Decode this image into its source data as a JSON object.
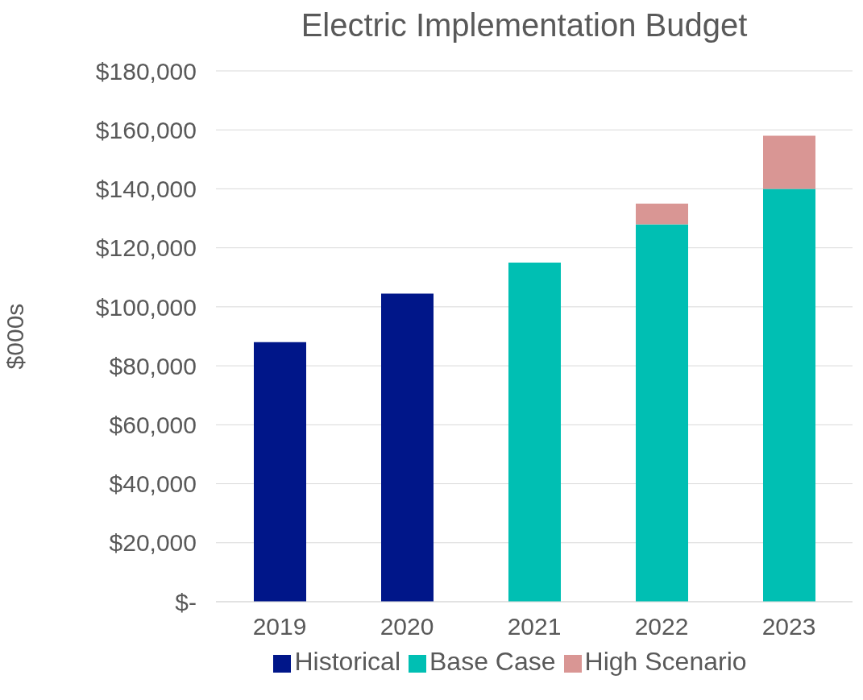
{
  "chart_data": {
    "type": "bar",
    "title": "Electric Implementation Budget",
    "ylabel": "$000s",
    "categories": [
      "2019",
      "2020",
      "2021",
      "2022",
      "2023"
    ],
    "stacked": true,
    "series": [
      {
        "name": "Historical",
        "color": "#001689",
        "values": [
          88000,
          104500,
          null,
          null,
          null
        ]
      },
      {
        "name": "Base Case",
        "color": "#00bfb3",
        "values": [
          null,
          null,
          115000,
          128000,
          140000
        ]
      },
      {
        "name": "High Scenario",
        "color": "#d99694",
        "values": [
          null,
          null,
          null,
          7000,
          18000
        ]
      }
    ],
    "ylim": [
      0,
      180000
    ],
    "yticks": [
      {
        "value": 0,
        "label": "$-"
      },
      {
        "value": 20000,
        "label": "$20,000"
      },
      {
        "value": 40000,
        "label": "$40,000"
      },
      {
        "value": 60000,
        "label": "$60,000"
      },
      {
        "value": 80000,
        "label": "$80,000"
      },
      {
        "value": 100000,
        "label": "$100,000"
      },
      {
        "value": 120000,
        "label": "$120,000"
      },
      {
        "value": 140000,
        "label": "$140,000"
      },
      {
        "value": 160000,
        "label": "$160,000"
      },
      {
        "value": 180000,
        "label": "$180,000"
      }
    ],
    "grid": "y",
    "legend": "bottom"
  }
}
